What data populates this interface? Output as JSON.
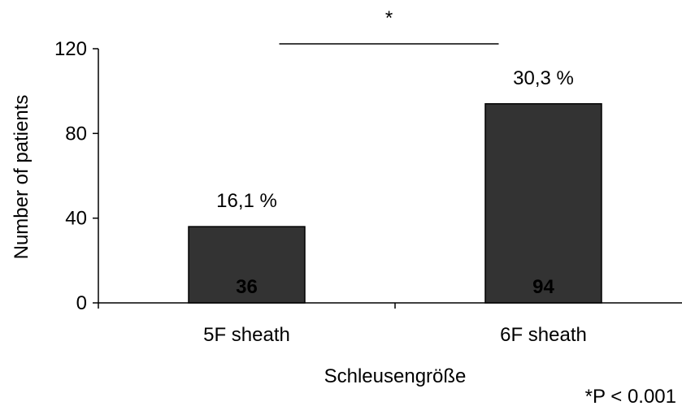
{
  "colors": {
    "bar_fill": "#333333",
    "bar_stroke": "#000000",
    "bar_label": "#ffffff",
    "axis": "#000000"
  },
  "chart_data": {
    "type": "bar",
    "categories": [
      "5F sheath",
      "6F sheath"
    ],
    "values": [
      36,
      94
    ],
    "value_labels": [
      "36",
      "94"
    ],
    "percent_labels": [
      "16,1 %",
      "30,3 %"
    ],
    "xlabel": "Schleusengröße",
    "ylabel": "Number of patients",
    "ylim": [
      0,
      120
    ],
    "yticks": [
      0,
      40,
      80,
      120
    ],
    "grid": false,
    "legend": "none",
    "significance": {
      "marker": "*",
      "between": [
        "5F sheath",
        "6F sheath"
      ]
    },
    "footnote": "*P < 0.001"
  }
}
